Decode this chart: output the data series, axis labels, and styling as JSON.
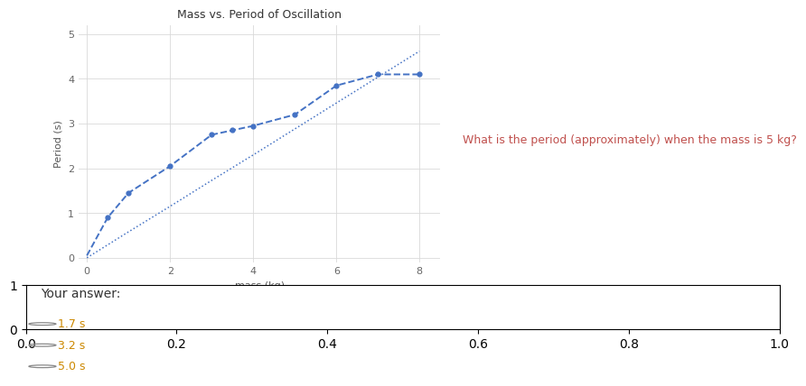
{
  "title": "Mass vs. Period of Oscillation",
  "xlabel": "mass (kg)",
  "ylabel": "Period (s)",
  "xlim": [
    -0.2,
    8.5
  ],
  "ylim": [
    -0.1,
    5.2
  ],
  "xticks": [
    0,
    2,
    4,
    6,
    8
  ],
  "yticks": [
    0,
    1,
    2,
    3,
    4,
    5
  ],
  "model1_x": [
    0,
    1,
    2,
    3,
    4,
    5,
    6,
    7,
    8
  ],
  "model1_y": [
    0.0,
    0.58,
    1.15,
    1.73,
    2.3,
    2.88,
    3.46,
    4.04,
    4.62
  ],
  "model2_x": [
    0,
    0.5,
    1,
    2,
    3,
    3.5,
    4,
    5,
    6,
    7,
    8
  ],
  "model2_y": [
    0.05,
    0.9,
    1.45,
    2.05,
    2.75,
    2.85,
    2.95,
    3.2,
    3.85,
    4.1,
    4.1
  ],
  "model2_points_x": [
    0.5,
    1,
    2,
    3,
    3.5,
    4,
    5,
    6,
    7,
    8
  ],
  "model2_points_y": [
    0.9,
    1.45,
    2.05,
    2.75,
    2.85,
    2.95,
    3.2,
    3.85,
    4.1,
    4.1
  ],
  "line_color": "#4472C4",
  "question_text": "What is the period (approximately) when the mass is 5 kg?",
  "question_color": "#C0504D",
  "answer_label": "Your answer:",
  "choices": [
    "1.7 s",
    "3.2 s",
    "5.0 s"
  ],
  "bg_color": "#ffffff",
  "answer_bg": "#e6e6e6",
  "grid_color": "#d9d9d9",
  "title_fontsize": 9,
  "axis_label_fontsize": 8,
  "tick_fontsize": 8,
  "question_fontsize": 9,
  "answer_fontsize": 10,
  "choice_fontsize": 9
}
